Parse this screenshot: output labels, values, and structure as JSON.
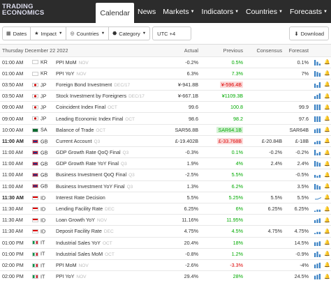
{
  "brand": {
    "line1": "TRADING",
    "line2": "ECONOMICS"
  },
  "nav": [
    {
      "label": "Calendar",
      "active": true,
      "caret": false
    },
    {
      "label": "News",
      "active": false,
      "caret": false
    },
    {
      "label": "Markets",
      "active": false,
      "caret": true
    },
    {
      "label": "Indicators",
      "active": false,
      "caret": true
    },
    {
      "label": "Countries",
      "active": false,
      "caret": true
    },
    {
      "label": "Forecasts",
      "active": false,
      "caret": true
    }
  ],
  "toolbar": {
    "dates_label": "Dates",
    "impact_label": "Impact",
    "countries_label": "Countries",
    "category_label": "Category",
    "timezone": "UTC +4",
    "download_label": "Download"
  },
  "table": {
    "date_header": "Thursday December 22 2022",
    "columns": {
      "actual": "Actual",
      "previous": "Previous",
      "consensus": "Consensus",
      "forecast": "Forecast"
    },
    "rows": [
      {
        "time": "01:00 AM",
        "bold": false,
        "flag": "kr",
        "code": "KR",
        "event": "PPI MoM",
        "ref": "NOV",
        "actual": "-0.2%",
        "previous": "0.5%",
        "prev_style": "g",
        "consensus": "",
        "forecast": "0.1%",
        "spark": [
          3,
          2,
          1,
          1,
          1,
          2
        ]
      },
      {
        "time": "01:00 AM",
        "bold": false,
        "flag": "kr",
        "code": "KR",
        "event": "PPI YoY",
        "ref": "NOV",
        "actual": "6.3%",
        "previous": "7.3%",
        "prev_style": "g",
        "consensus": "",
        "forecast": "7%",
        "spark": [
          6,
          5,
          4,
          3,
          3,
          3
        ]
      },
      {
        "time": "03:50 AM",
        "bold": false,
        "flag": "jp",
        "code": "JP",
        "event": "Foreign Bond Investment",
        "ref": "DEC/17",
        "actual": "¥-941.8B",
        "previous": "¥-596.4B",
        "prev_style": "hr",
        "consensus": "",
        "forecast": "",
        "spark": [
          3,
          2,
          4,
          2,
          3,
          1
        ]
      },
      {
        "time": "03:50 AM",
        "bold": false,
        "flag": "jp",
        "code": "JP",
        "event": "Stock Investment by Foreigners",
        "ref": "DEC/17",
        "actual": "¥-667.1B",
        "previous": "¥1109.3B",
        "prev_style": "g",
        "consensus": "",
        "forecast": "",
        "spark": [
          2,
          3,
          4,
          2,
          3,
          2
        ]
      },
      {
        "time": "09:00 AM",
        "bold": false,
        "flag": "jp",
        "code": "JP",
        "event": "Coincident Index Final",
        "ref": "OCT",
        "actual": "99.6",
        "previous": "100.8",
        "prev_style": "g",
        "consensus": "",
        "forecast": "99.9",
        "spark": [
          5,
          5,
          5,
          5,
          5,
          5
        ]
      },
      {
        "time": "09:00 AM",
        "bold": false,
        "flag": "jp",
        "code": "JP",
        "event": "Leading Economic Index Final",
        "ref": "OCT",
        "actual": "98.6",
        "previous": "98.2",
        "prev_style": "g",
        "consensus": "",
        "forecast": "97.6",
        "spark": [
          5,
          5,
          5,
          4,
          5,
          5
        ]
      },
      {
        "time": "10:00 AM",
        "bold": false,
        "flag": "sa",
        "code": "SA",
        "event": "Balance of Trade",
        "ref": "OCT",
        "actual": "SAR56.8B",
        "previous": "SAR64.1B",
        "prev_style": "hg",
        "consensus": "",
        "forecast": "SAR64B",
        "spark": [
          4,
          5,
          5,
          6,
          6,
          5
        ]
      },
      {
        "time": "11:00 AM",
        "bold": true,
        "flag": "gb",
        "code": "GB",
        "event": "Current Account",
        "ref": "Q3",
        "actual": "£-19.402B",
        "previous": "£-33.768B",
        "prev_style": "hr",
        "consensus": "£-20.84B",
        "forecast": "£-18B",
        "spark": [
          2,
          3,
          3,
          4,
          5,
          4
        ]
      },
      {
        "time": "11:00 AM",
        "bold": false,
        "flag": "gb",
        "code": "GB",
        "event": "GDP Growth Rate QoQ Final",
        "ref": "Q3",
        "actual": "-0.3%",
        "previous": "0.1%",
        "prev_style": "g",
        "consensus": "-0.2%",
        "forecast": "-0.2%",
        "spark": [
          5,
          2,
          3,
          3,
          1,
          1
        ]
      },
      {
        "time": "11:00 AM",
        "bold": false,
        "flag": "gb",
        "code": "GB",
        "event": "GDP Growth Rate YoY Final",
        "ref": "Q3",
        "actual": "1.9%",
        "previous": "4%",
        "prev_style": "g",
        "consensus": "2.4%",
        "forecast": "2.4%",
        "spark": [
          6,
          5,
          4,
          3,
          2,
          2
        ]
      },
      {
        "time": "11:00 AM",
        "bold": false,
        "flag": "gb",
        "code": "GB",
        "event": "Business Investment QoQ Final",
        "ref": "Q3",
        "actual": "-2.5%",
        "previous": "5.5%",
        "prev_style": "g",
        "consensus": "",
        "forecast": "-0.5%",
        "spark": [
          3,
          2,
          3,
          4,
          6,
          1
        ]
      },
      {
        "time": "11:00 AM",
        "bold": false,
        "flag": "gb",
        "code": "GB",
        "event": "Business Investment YoY Final",
        "ref": "Q3",
        "actual": "1.3%",
        "previous": "6.2%",
        "prev_style": "g",
        "consensus": "",
        "forecast": "3.5%",
        "spark": [
          5,
          4,
          3,
          4,
          5,
          2
        ]
      },
      {
        "time": "11:30 AM",
        "bold": true,
        "flag": "id",
        "code": "ID",
        "event": "Interest Rate Decision",
        "ref": "",
        "actual": "5.5%",
        "previous": "5.25%",
        "prev_style": "g",
        "consensus": "5.5%",
        "forecast": "5.5%",
        "spark": [
          1,
          1,
          2,
          3,
          4,
          5
        ]
      },
      {
        "time": "11:30 AM",
        "bold": false,
        "flag": "id",
        "code": "ID",
        "event": "Lending Facility Rate",
        "ref": "DEC",
        "actual": "6.25%",
        "previous": "6%",
        "prev_style": "g",
        "consensus": "6.25%",
        "forecast": "6.25%",
        "spark": [
          1,
          2,
          2,
          3,
          4,
          5
        ]
      },
      {
        "time": "11:30 AM",
        "bold": false,
        "flag": "id",
        "code": "ID",
        "event": "Loan Growth YoY",
        "ref": "NOV",
        "actual": "11.16%",
        "previous": "11.95%",
        "prev_style": "g",
        "consensus": "",
        "forecast": "",
        "spark": [
          3,
          4,
          5,
          5,
          6,
          6
        ]
      },
      {
        "time": "11:30 AM",
        "bold": false,
        "flag": "id",
        "code": "ID",
        "event": "Deposit Facility Rate",
        "ref": "DEC",
        "actual": "4.75%",
        "previous": "4.5%",
        "prev_style": "g",
        "consensus": "4.75%",
        "forecast": "4.75%",
        "spark": [
          1,
          2,
          2,
          3,
          4,
          5
        ]
      },
      {
        "time": "01:00 PM",
        "bold": false,
        "flag": "it",
        "code": "IT",
        "event": "Industrial Sales YoY",
        "ref": "OCT",
        "actual": "20.4%",
        "previous": "18%",
        "prev_style": "g",
        "consensus": "",
        "forecast": "14.5%",
        "spark": [
          4,
          4,
          5,
          4,
          5,
          6
        ]
      },
      {
        "time": "01:00 PM",
        "bold": false,
        "flag": "it",
        "code": "IT",
        "event": "Industrial Sales MoM",
        "ref": "OCT",
        "actual": "-0.8%",
        "previous": "1.2%",
        "prev_style": "g",
        "consensus": "",
        "forecast": "-0.9%",
        "spark": [
          3,
          4,
          2,
          4,
          3,
          2
        ]
      },
      {
        "time": "02:00 PM",
        "bold": false,
        "flag": "it",
        "code": "IT",
        "event": "PPI MoM",
        "ref": "NOV",
        "actual": "-2.6%",
        "previous": "-3.3%",
        "prev_style": "r",
        "consensus": "",
        "forecast": "-4%",
        "spark": [
          4,
          5,
          6,
          2,
          3,
          1
        ]
      },
      {
        "time": "02:00 PM",
        "bold": false,
        "flag": "it",
        "code": "IT",
        "event": "PPI YoY",
        "ref": "NOV",
        "actual": "29.4%",
        "previous": "28%",
        "prev_style": "g",
        "consensus": "",
        "forecast": "24.5%",
        "spark": [
          4,
          5,
          6,
          5,
          4,
          4
        ]
      }
    ]
  }
}
